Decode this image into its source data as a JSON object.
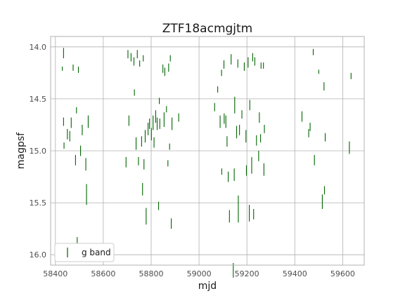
{
  "chart_data": {
    "type": "errorbar",
    "title": "ZTF18acmgjtm",
    "xlabel": "mjd",
    "ylabel": "magpsf",
    "xlim": [
      58380,
      59690
    ],
    "ylim": [
      16.1,
      13.9
    ],
    "y_inverted": true,
    "xticks": [
      58400,
      58600,
      58800,
      59000,
      59200,
      59400,
      59600
    ],
    "yticks": [
      14.0,
      14.5,
      15.0,
      15.5,
      16.0
    ],
    "xtick_labels": [
      "58400",
      "58600",
      "58800",
      "59000",
      "59200",
      "59400",
      "59600"
    ],
    "ytick_labels": [
      "14.0",
      "14.5",
      "15.0",
      "15.5",
      "16.0"
    ],
    "grid": true,
    "legend_position": "lower-left",
    "series": [
      {
        "name": "g band",
        "color": "#006400",
        "marker": "errorbar-vertical",
        "points": [
          [
            58429,
            14.21,
            0.02
          ],
          [
            58434,
            14.06,
            0.05
          ],
          [
            58434,
            14.72,
            0.04
          ],
          [
            58436,
            14.95,
            0.03
          ],
          [
            58450,
            14.84,
            0.05
          ],
          [
            58460,
            14.86,
            0.05
          ],
          [
            58466,
            14.73,
            0.05
          ],
          [
            58474,
            14.2,
            0.03
          ],
          [
            58484,
            15.09,
            0.05
          ],
          [
            58488,
            14.61,
            0.03
          ],
          [
            58491,
            15.91,
            0.08
          ],
          [
            58496,
            14.22,
            0.03
          ],
          [
            58505,
            15.0,
            0.05
          ],
          [
            58512,
            14.8,
            0.05
          ],
          [
            58527,
            15.13,
            0.06
          ],
          [
            58530,
            15.42,
            0.1
          ],
          [
            58537,
            14.72,
            0.06
          ],
          [
            58695,
            15.11,
            0.05
          ],
          [
            58703,
            14.07,
            0.04
          ],
          [
            58707,
            14.71,
            0.05
          ],
          [
            58716,
            14.1,
            0.04
          ],
          [
            58728,
            14.14,
            0.04
          ],
          [
            58730,
            14.44,
            0.03
          ],
          [
            58737,
            14.93,
            0.06
          ],
          [
            58742,
            14.07,
            0.04
          ],
          [
            58747,
            15.1,
            0.04
          ],
          [
            58752,
            14.16,
            0.03
          ],
          [
            58760,
            14.91,
            0.05
          ],
          [
            58764,
            15.37,
            0.06
          ],
          [
            58767,
            14.11,
            0.03
          ],
          [
            58770,
            15.13,
            0.05
          ],
          [
            58775,
            14.86,
            0.06
          ],
          [
            58779,
            15.63,
            0.08
          ],
          [
            58787,
            14.79,
            0.06
          ],
          [
            58793,
            14.74,
            0.05
          ],
          [
            58801,
            14.84,
            0.06
          ],
          [
            58808,
            14.73,
            0.07
          ],
          [
            58812,
            14.92,
            0.05
          ],
          [
            58819,
            14.67,
            0.06
          ],
          [
            58825,
            14.74,
            0.06
          ],
          [
            58831,
            15.53,
            0.04
          ],
          [
            58834,
            14.52,
            0.03
          ],
          [
            58836,
            14.74,
            0.05
          ],
          [
            58849,
            14.21,
            0.04
          ],
          [
            58854,
            14.7,
            0.07
          ],
          [
            58857,
            14.24,
            0.04
          ],
          [
            58864,
            14.6,
            0.03
          ],
          [
            58870,
            15.12,
            0.03
          ],
          [
            58873,
            14.2,
            0.04
          ],
          [
            58877,
            14.96,
            0.03
          ],
          [
            58880,
            14.11,
            0.03
          ],
          [
            58884,
            15.7,
            0.05
          ],
          [
            58887,
            14.74,
            0.06
          ],
          [
            58915,
            14.68,
            0.04
          ],
          [
            59065,
            14.58,
            0.04
          ],
          [
            59078,
            14.41,
            0.03
          ],
          [
            59088,
            14.72,
            0.06
          ],
          [
            59094,
            14.25,
            0.03
          ],
          [
            59095,
            15.2,
            0.03
          ],
          [
            59104,
            14.17,
            0.04
          ],
          [
            59105,
            14.69,
            0.05
          ],
          [
            59112,
            14.72,
            0.06
          ],
          [
            59117,
            14.91,
            0.05
          ],
          [
            59122,
            15.25,
            0.05
          ],
          [
            59127,
            15.63,
            0.06
          ],
          [
            59134,
            14.12,
            0.05
          ],
          [
            59143,
            16.15,
            0.07
          ],
          [
            59147,
            15.23,
            0.06
          ],
          [
            59149,
            14.56,
            0.08
          ],
          [
            59157,
            14.82,
            0.06
          ],
          [
            59162,
            14.16,
            0.04
          ],
          [
            59164,
            15.56,
            0.13
          ],
          [
            59169,
            14.8,
            0.05
          ],
          [
            59179,
            14.65,
            0.04
          ],
          [
            59189,
            14.19,
            0.04
          ],
          [
            59196,
            14.86,
            0.06
          ],
          [
            59198,
            15.19,
            0.05
          ],
          [
            59205,
            14.15,
            0.05
          ],
          [
            59210,
            15.6,
            0.08
          ],
          [
            59212,
            14.56,
            0.05
          ],
          [
            59220,
            15.14,
            0.08
          ],
          [
            59224,
            14.1,
            0.04
          ],
          [
            59228,
            15.61,
            0.05
          ],
          [
            59233,
            14.14,
            0.04
          ],
          [
            59240,
            14.9,
            0.05
          ],
          [
            59249,
            15.05,
            0.05
          ],
          [
            59252,
            14.68,
            0.05
          ],
          [
            59257,
            14.88,
            0.04
          ],
          [
            59259,
            14.18,
            0.03
          ],
          [
            59269,
            14.18,
            0.03
          ],
          [
            59271,
            15.18,
            0.06
          ],
          [
            59273,
            14.79,
            0.04
          ],
          [
            59430,
            14.67,
            0.05
          ],
          [
            59458,
            14.83,
            0.04
          ],
          [
            59464,
            14.77,
            0.04
          ],
          [
            59477,
            14.05,
            0.03
          ],
          [
            59482,
            15.09,
            0.05
          ],
          [
            59500,
            14.24,
            0.02
          ],
          [
            59515,
            15.49,
            0.07
          ],
          [
            59522,
            14.38,
            0.04
          ],
          [
            59524,
            15.38,
            0.04
          ],
          [
            59527,
            14.87,
            0.04
          ],
          [
            59628,
            14.97,
            0.06
          ],
          [
            59635,
            14.28,
            0.03
          ]
        ]
      }
    ]
  }
}
